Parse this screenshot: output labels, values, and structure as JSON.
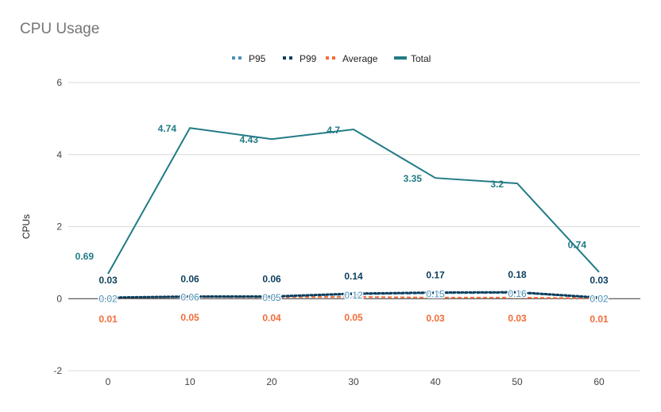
{
  "chart_data": {
    "type": "line",
    "title": "CPU Usage",
    "xlabel": "",
    "ylabel": "CPUs",
    "x": [
      0,
      10,
      20,
      30,
      40,
      50,
      60
    ],
    "ylim": [
      -2,
      6
    ],
    "yticks": [
      -2,
      0,
      2,
      4,
      6
    ],
    "grid": true,
    "legend_position": "top",
    "series": [
      {
        "name": "P95",
        "color": "#4a90b8",
        "style": "dashed",
        "labels_shown": true,
        "label_position": "on-line",
        "values": [
          0.02,
          0.06,
          0.05,
          0.12,
          0.15,
          0.16,
          0.02
        ]
      },
      {
        "name": "P99",
        "color": "#0b3d5c",
        "style": "dotted",
        "labels_shown": true,
        "label_position": "above",
        "values": [
          0.03,
          0.06,
          0.06,
          0.14,
          0.17,
          0.18,
          0.03
        ]
      },
      {
        "name": "Average",
        "color": "#f26b38",
        "style": "dashed",
        "labels_shown": true,
        "label_position": "below",
        "values": [
          0.01,
          0.05,
          0.04,
          0.05,
          0.03,
          0.03,
          0.01
        ]
      },
      {
        "name": "Total",
        "color": "#217b86",
        "style": "solid",
        "labels_shown": true,
        "label_position": "left",
        "values": [
          0.69,
          4.74,
          4.43,
          4.7,
          3.35,
          3.2,
          0.74
        ]
      }
    ]
  }
}
